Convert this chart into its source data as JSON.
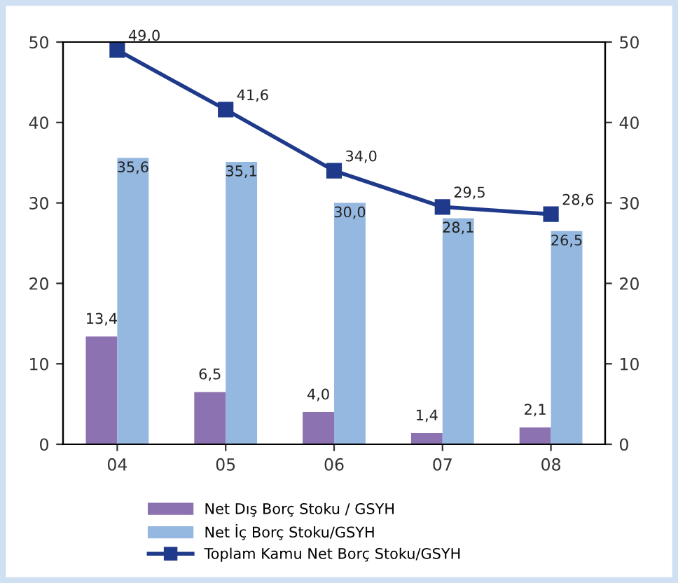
{
  "chart_data": {
    "type": "bar",
    "categories": [
      "04",
      "05",
      "06",
      "07",
      "08"
    ],
    "series": [
      {
        "name": "Net Dış Borç Stoku / GSYH",
        "color": "#8c72b0",
        "values": [
          13.4,
          6.5,
          4.0,
          1.4,
          2.1
        ],
        "value_labels": [
          "13,4",
          "6,5",
          "4,0",
          "1,4",
          "2,1"
        ]
      },
      {
        "name": "Net İç Borç Stoku/GSYH",
        "color": "#95b8e0",
        "values": [
          35.6,
          35.1,
          30.0,
          28.1,
          26.5
        ],
        "value_labels": [
          "35,6",
          "35,1",
          "30,0",
          "28,1",
          "26,5"
        ]
      },
      {
        "name": "Toplam Kamu Net Borç Stoku/GSYH",
        "type": "line",
        "axis": "y2",
        "color": "#1f3a8a",
        "marker": "square",
        "line_style": "solid",
        "values": [
          49.0,
          41.6,
          34.0,
          29.5,
          28.6
        ],
        "value_labels": [
          "49,0",
          "41,6",
          "34,0",
          "29,5",
          "28,6"
        ]
      }
    ],
    "ylim": [
      0,
      50
    ],
    "yticks": [
      0,
      10,
      20,
      30,
      40,
      50
    ],
    "y2lim": [
      0,
      50
    ],
    "y2ticks": [
      0,
      10,
      20,
      30,
      40,
      50
    ],
    "grid": false,
    "legend": "bottom"
  }
}
